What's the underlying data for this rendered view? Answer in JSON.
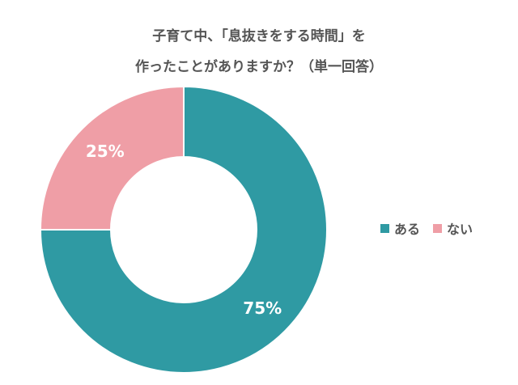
{
  "chart_data": {
    "type": "pie",
    "title_lines": [
      "子育て中、「息抜きをする時間」を",
      "作ったことがありますか？（単一回答）"
    ],
    "categories": [
      "ある",
      "ない"
    ],
    "values": [
      75,
      25
    ],
    "labels": [
      "75%",
      "25%"
    ],
    "colors": [
      "#2f9aa3",
      "#ef9ea6"
    ],
    "label_color": "#ffffff",
    "donut": true,
    "legend_position": "right",
    "start_angle_deg": 0,
    "direction": "clockwise"
  }
}
